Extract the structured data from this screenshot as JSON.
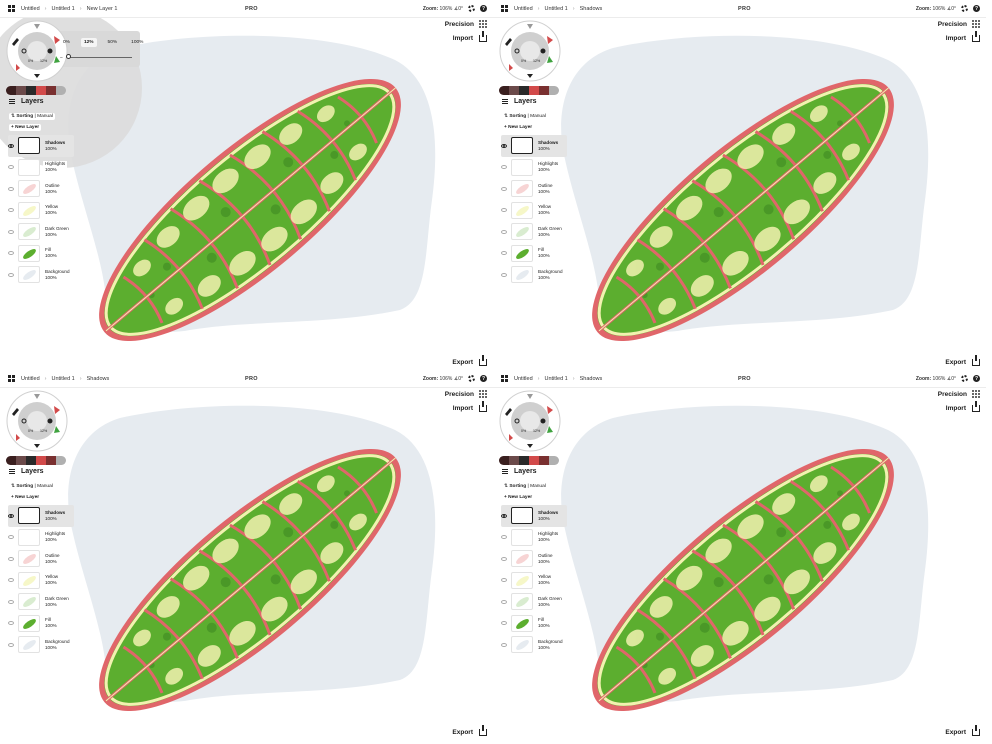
{
  "topbar": {
    "crumbs_panel1": [
      "Untitled",
      "Untitled 1",
      "New Layer 1"
    ],
    "crumbs_other": [
      "Untitled",
      "Untitled 1",
      "Shadows"
    ],
    "brand": "PRO",
    "zoom_label": "Zoom:",
    "zoom_value": "106%",
    "rotation": "∡0°"
  },
  "toolbar": {
    "precision_label": "Precision",
    "import_label": "Import",
    "export_label": "Export"
  },
  "brush": {
    "opacity_options": [
      "0%",
      "12%",
      "50%",
      "100%"
    ],
    "selected_opacity": "12%",
    "wheel_labels": [
      "0%",
      "12%"
    ]
  },
  "layers_panel": {
    "title": "Layers",
    "sorting_label": "Sorting",
    "sorting_value": "Manual",
    "new_layer_label": "+ New Layer",
    "layers": [
      {
        "name": "Shadows",
        "opacity": "100%",
        "active": true
      },
      {
        "name": "Highlights",
        "opacity": "100%",
        "active": false
      },
      {
        "name": "Outline",
        "opacity": "100%",
        "active": false
      },
      {
        "name": "Yellow",
        "opacity": "100%",
        "active": false
      },
      {
        "name": "Dark Green",
        "opacity": "100%",
        "active": false
      },
      {
        "name": "Fill",
        "opacity": "100%",
        "active": false
      },
      {
        "name": "Background",
        "opacity": "100%",
        "active": false
      }
    ]
  },
  "colors": {
    "swatches": [
      "#3a1f1f",
      "#6b4a4a",
      "#2a2a2a",
      "#d24a4a",
      "#7a3030",
      "#b0b0b0"
    ],
    "leaf_outline": "#e0666a",
    "leaf_fill": "#5cae2f",
    "leaf_yellow": "#f2f2b0",
    "background_blob": "#e6ebf0"
  }
}
